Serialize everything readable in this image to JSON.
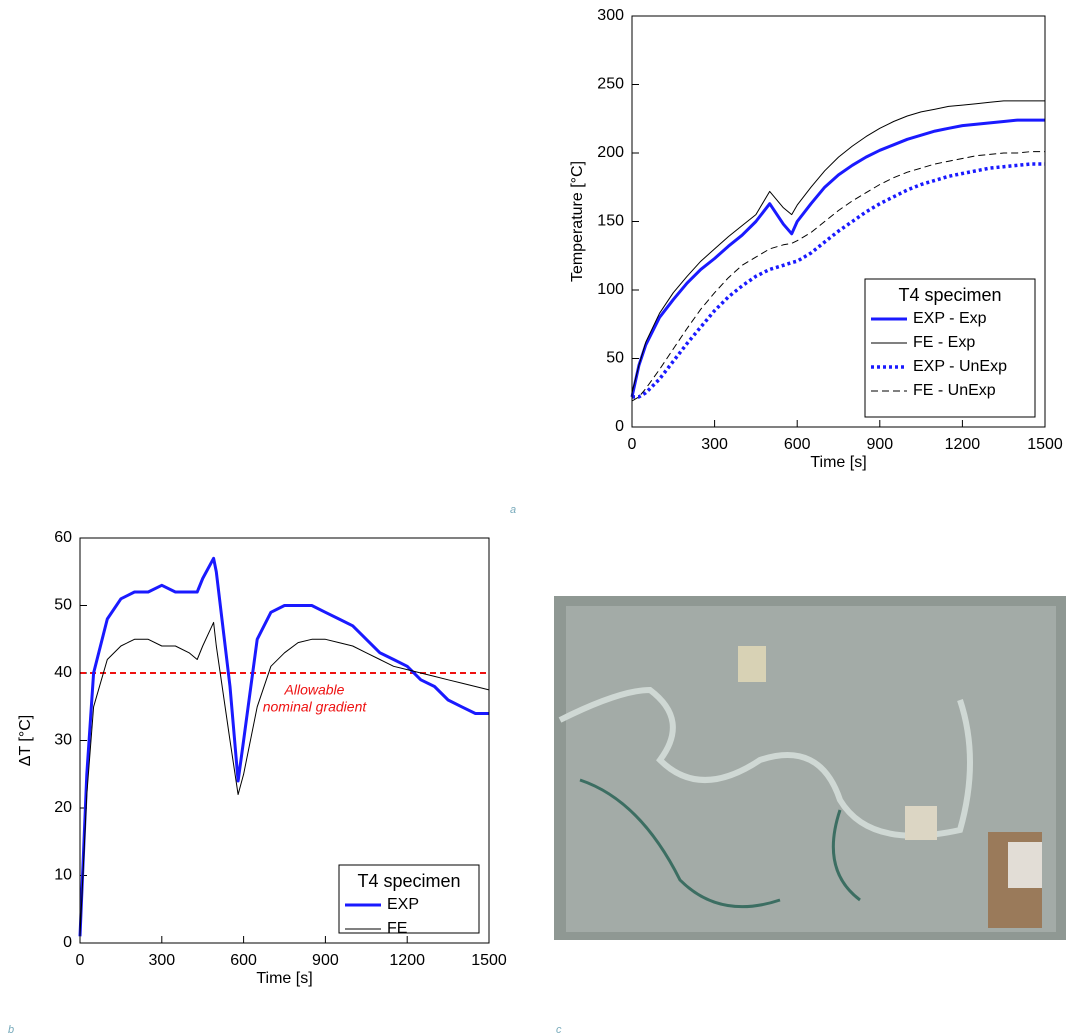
{
  "panel_labels": [
    "a",
    "b",
    "c"
  ],
  "chart_data": [
    {
      "type": "line",
      "xlabel": "Time  [s]",
      "ylabel": "Temperature  [°C]",
      "xlim": [
        0,
        1500
      ],
      "xticks": [
        0,
        300,
        600,
        900,
        1200,
        1500
      ],
      "ylim": [
        0,
        300
      ],
      "yticks": [
        0,
        50,
        100,
        150,
        200,
        250,
        300
      ],
      "legend": "lower right",
      "legend_title": "T4 specimen",
      "x": [
        0,
        25,
        50,
        100,
        150,
        200,
        250,
        300,
        350,
        400,
        450,
        500,
        550,
        580,
        600,
        650,
        700,
        750,
        800,
        850,
        900,
        950,
        1000,
        1050,
        1100,
        1150,
        1200,
        1250,
        1300,
        1350,
        1400,
        1450,
        1500
      ],
      "series": [
        {
          "name": "EXP - Exp",
          "color": "#1a1aff",
          "line_style": "solid",
          "line_width": 3,
          "values": [
            22,
            45,
            60,
            80,
            93,
            105,
            115,
            123,
            132,
            140,
            150,
            163,
            148,
            141,
            150,
            163,
            175,
            184,
            191,
            197,
            202,
            206,
            210,
            213,
            216,
            218,
            220,
            221,
            222,
            223,
            224,
            224,
            224
          ]
        },
        {
          "name": "FE - Exp",
          "color": "#000000",
          "line_style": "solid",
          "line_width": 1,
          "values": [
            25,
            45,
            62,
            83,
            98,
            110,
            121,
            130,
            139,
            147,
            155,
            172,
            160,
            155,
            162,
            175,
            187,
            197,
            205,
            212,
            218,
            223,
            227,
            230,
            232,
            234,
            235,
            236,
            237,
            238,
            238,
            238,
            238
          ]
        },
        {
          "name": "EXP - UnExp",
          "color": "#1a1aff",
          "line_style": "dotted",
          "line_width": 3.5,
          "values": [
            22,
            22,
            25,
            35,
            48,
            61,
            73,
            85,
            95,
            103,
            110,
            115,
            118,
            120,
            121,
            127,
            135,
            143,
            150,
            157,
            163,
            168,
            173,
            177,
            180,
            183,
            185,
            187,
            189,
            190,
            191,
            192,
            192
          ]
        },
        {
          "name": "FE - UnExp",
          "color": "#000000",
          "line_style": "dashed",
          "line_width": 1,
          "values": [
            19,
            22,
            28,
            42,
            57,
            72,
            86,
            98,
            109,
            118,
            124,
            130,
            133,
            134,
            136,
            142,
            150,
            158,
            165,
            171,
            177,
            182,
            186,
            189,
            192,
            194,
            196,
            198,
            199,
            200,
            200,
            201,
            201
          ]
        }
      ]
    },
    {
      "type": "line",
      "xlabel": "Time  [s]",
      "ylabel": "ΔT  [°C]",
      "xlim": [
        0,
        1500
      ],
      "xticks": [
        0,
        300,
        600,
        900,
        1200,
        1500
      ],
      "ylim": [
        0,
        60
      ],
      "yticks": [
        0,
        10,
        20,
        30,
        40,
        50,
        60
      ],
      "legend": "lower right",
      "legend_title": "T4 specimen",
      "hline": {
        "value": 40,
        "color": "#ee1111"
      },
      "annotation": [
        "Allowable",
        "nominal gradient"
      ],
      "x": [
        0,
        25,
        50,
        100,
        150,
        200,
        250,
        300,
        350,
        400,
        430,
        450,
        490,
        500,
        550,
        580,
        600,
        650,
        700,
        750,
        800,
        850,
        900,
        950,
        1000,
        1050,
        1100,
        1150,
        1200,
        1250,
        1300,
        1350,
        1400,
        1450,
        1500
      ],
      "series": [
        {
          "name": "EXP",
          "color": "#1a1aff",
          "line_style": "solid",
          "line_width": 3,
          "values": [
            1,
            25,
            40,
            48,
            51,
            52,
            52,
            53,
            52,
            52,
            52,
            54,
            57,
            55,
            38,
            24,
            30,
            45,
            49,
            50,
            50,
            50,
            49,
            48,
            47,
            45,
            43,
            42,
            41,
            39,
            38,
            36,
            35,
            34,
            34
          ]
        },
        {
          "name": "FE",
          "color": "#000000",
          "line_style": "solid",
          "line_width": 1,
          "values": [
            1,
            22,
            35,
            42,
            44,
            45,
            45,
            44,
            44,
            43,
            42,
            44,
            47.5,
            44,
            30,
            22,
            25,
            35,
            41,
            43,
            44.5,
            45,
            45,
            44.5,
            44,
            43,
            42,
            41,
            40.5,
            40,
            39.5,
            39,
            38.5,
            38,
            37.5
          ]
        }
      ]
    }
  ]
}
